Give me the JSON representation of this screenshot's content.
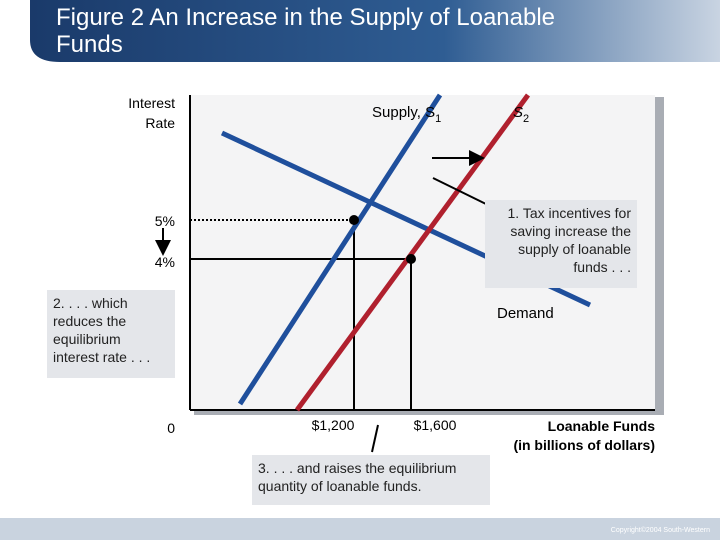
{
  "header": {
    "title": "Figure 2 An Increase in the Supply of Loanable Funds"
  },
  "axes": {
    "y_label": "Interest Rate",
    "x_label": "Loanable Funds (in billions of dollars)",
    "origin": "0"
  },
  "curves": {
    "supply_1": {
      "text": "Supply, S",
      "subscript": "1"
    },
    "supply_2": {
      "text": "S",
      "subscript": "2"
    },
    "demand": "Demand"
  },
  "rates": [
    "5%",
    "4%"
  ],
  "quantities": [
    "$1,200",
    "$1,600"
  ],
  "annotations": [
    "1. Tax incentives for saving increase the supply of loanable funds . . .",
    "2. . . . which reduces the equilibrium interest rate . . .",
    "3. . . . and raises the equilibrium quantity of loanable funds."
  ],
  "footer": {
    "copyright": "Copyright©2004  South-Western"
  }
}
